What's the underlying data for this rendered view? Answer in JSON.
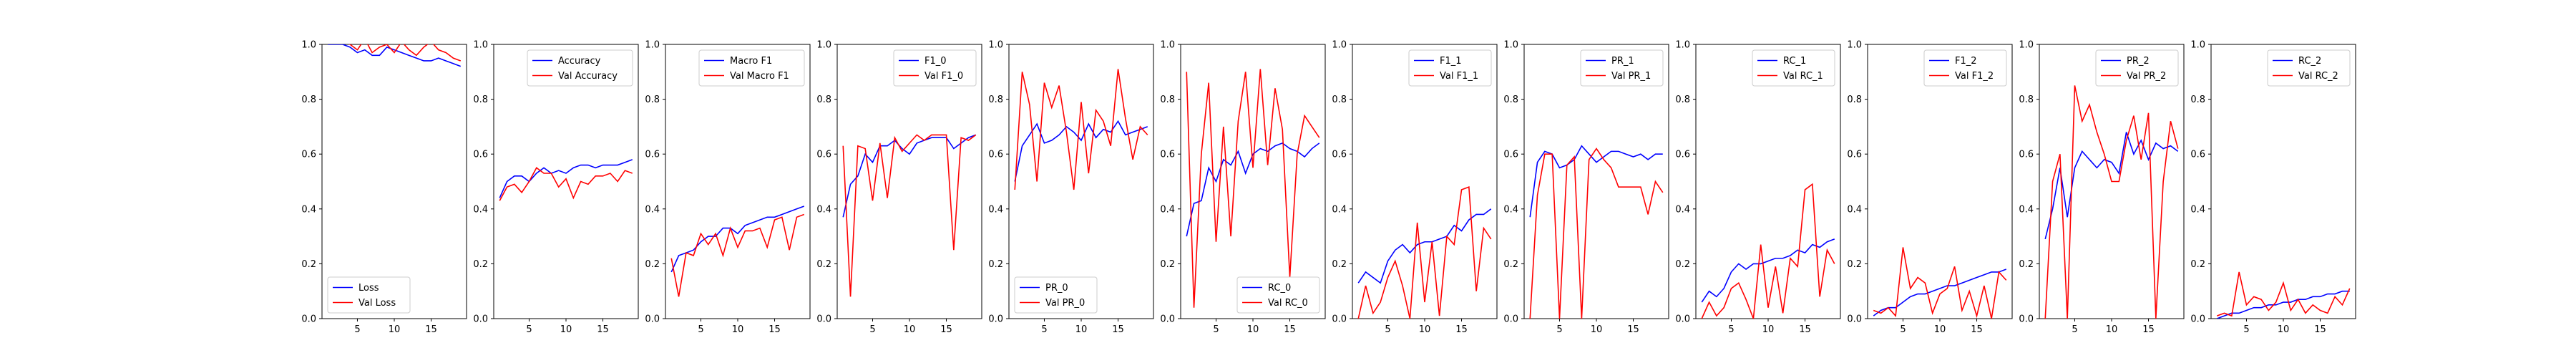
{
  "figure": {
    "background": "#ffffff",
    "line_colors": [
      "#0000ff",
      "#ff0000"
    ]
  },
  "chart_data": [
    {
      "type": "line",
      "x": [
        1,
        2,
        3,
        4,
        5,
        6,
        7,
        8,
        9,
        10,
        11,
        12,
        13,
        14,
        15,
        16,
        17,
        18,
        19
      ],
      "xticks": [
        5,
        10,
        15
      ],
      "ylim": [
        0,
        1
      ],
      "yticks": [
        "0.0",
        "0.2",
        "0.4",
        "0.6",
        "0.8",
        "1.0"
      ],
      "legend_loc": "lower-left",
      "series": [
        {
          "name": "Loss",
          "values": [
            1.0,
            1.0,
            1.0,
            0.99,
            0.97,
            0.98,
            0.96,
            0.96,
            0.99,
            0.98,
            0.97,
            0.96,
            0.95,
            0.94,
            0.94,
            0.95,
            0.94,
            0.93,
            0.92
          ]
        },
        {
          "name": "Val Loss",
          "values": [
            1.03,
            1.02,
            1.01,
            1.0,
            0.98,
            1.02,
            0.97,
            0.99,
            1.0,
            0.97,
            1.01,
            0.98,
            0.96,
            0.99,
            1.01,
            0.98,
            0.97,
            0.95,
            0.94
          ]
        }
      ]
    },
    {
      "type": "line",
      "x": [
        1,
        2,
        3,
        4,
        5,
        6,
        7,
        8,
        9,
        10,
        11,
        12,
        13,
        14,
        15,
        16,
        17,
        18,
        19
      ],
      "xticks": [
        5,
        10,
        15
      ],
      "ylim": [
        0,
        1
      ],
      "yticks": [
        "0.0",
        "0.2",
        "0.4",
        "0.6",
        "0.8",
        "1.0"
      ],
      "legend_loc": "upper-right",
      "series": [
        {
          "name": "Accuracy",
          "values": [
            0.44,
            0.5,
            0.52,
            0.52,
            0.5,
            0.53,
            0.55,
            0.53,
            0.54,
            0.53,
            0.55,
            0.56,
            0.56,
            0.55,
            0.56,
            0.56,
            0.56,
            0.57,
            0.58
          ]
        },
        {
          "name": "Val Accuracy",
          "values": [
            0.43,
            0.48,
            0.49,
            0.46,
            0.5,
            0.55,
            0.53,
            0.53,
            0.48,
            0.51,
            0.44,
            0.5,
            0.49,
            0.52,
            0.52,
            0.53,
            0.5,
            0.54,
            0.53
          ]
        }
      ]
    },
    {
      "type": "line",
      "x": [
        1,
        2,
        3,
        4,
        5,
        6,
        7,
        8,
        9,
        10,
        11,
        12,
        13,
        14,
        15,
        16,
        17,
        18,
        19
      ],
      "xticks": [
        5,
        10,
        15
      ],
      "ylim": [
        0,
        1
      ],
      "yticks": [
        "0.0",
        "0.2",
        "0.4",
        "0.6",
        "0.8",
        "1.0"
      ],
      "legend_loc": "upper-right",
      "series": [
        {
          "name": "Macro F1",
          "values": [
            0.17,
            0.23,
            0.24,
            0.25,
            0.28,
            0.3,
            0.3,
            0.33,
            0.33,
            0.31,
            0.34,
            0.35,
            0.36,
            0.37,
            0.37,
            0.38,
            0.39,
            0.4,
            0.41
          ]
        },
        {
          "name": "Val Macro F1",
          "values": [
            0.22,
            0.08,
            0.24,
            0.23,
            0.31,
            0.27,
            0.31,
            0.23,
            0.33,
            0.26,
            0.32,
            0.32,
            0.33,
            0.26,
            0.36,
            0.37,
            0.25,
            0.37,
            0.38
          ]
        }
      ]
    },
    {
      "type": "line",
      "x": [
        1,
        2,
        3,
        4,
        5,
        6,
        7,
        8,
        9,
        10,
        11,
        12,
        13,
        14,
        15,
        16,
        17,
        18,
        19
      ],
      "xticks": [
        5,
        10,
        15
      ],
      "ylim": [
        0,
        1
      ],
      "yticks": [
        "0.0",
        "0.2",
        "0.4",
        "0.6",
        "0.8",
        "1.0"
      ],
      "legend_loc": "upper-right",
      "series": [
        {
          "name": "F1_0",
          "values": [
            0.37,
            0.49,
            0.52,
            0.6,
            0.57,
            0.63,
            0.63,
            0.65,
            0.62,
            0.6,
            0.64,
            0.65,
            0.66,
            0.66,
            0.66,
            0.62,
            0.64,
            0.66,
            0.67
          ]
        },
        {
          "name": "Val F1_0",
          "values": [
            0.63,
            0.08,
            0.63,
            0.62,
            0.43,
            0.64,
            0.44,
            0.66,
            0.61,
            0.64,
            0.67,
            0.65,
            0.67,
            0.67,
            0.67,
            0.25,
            0.66,
            0.65,
            0.67
          ]
        }
      ]
    },
    {
      "type": "line",
      "x": [
        1,
        2,
        3,
        4,
        5,
        6,
        7,
        8,
        9,
        10,
        11,
        12,
        13,
        14,
        15,
        16,
        17,
        18,
        19
      ],
      "xticks": [
        5,
        10,
        15
      ],
      "ylim": [
        0,
        1
      ],
      "yticks": [
        "0.0",
        "0.2",
        "0.4",
        "0.6",
        "0.8",
        "1.0"
      ],
      "legend_loc": "lower-left",
      "series": [
        {
          "name": "PR_0",
          "values": [
            0.5,
            0.63,
            0.67,
            0.71,
            0.64,
            0.65,
            0.67,
            0.7,
            0.68,
            0.65,
            0.71,
            0.66,
            0.69,
            0.68,
            0.72,
            0.67,
            0.68,
            0.69,
            0.7
          ]
        },
        {
          "name": "Val PR_0",
          "values": [
            0.47,
            0.9,
            0.78,
            0.5,
            0.86,
            0.77,
            0.85,
            0.68,
            0.47,
            0.79,
            0.53,
            0.76,
            0.72,
            0.63,
            0.91,
            0.73,
            0.58,
            0.7,
            0.67
          ]
        }
      ]
    },
    {
      "type": "line",
      "x": [
        1,
        2,
        3,
        4,
        5,
        6,
        7,
        8,
        9,
        10,
        11,
        12,
        13,
        14,
        15,
        16,
        17,
        18,
        19
      ],
      "xticks": [
        5,
        10,
        15
      ],
      "ylim": [
        0,
        1
      ],
      "yticks": [
        "0.0",
        "0.2",
        "0.4",
        "0.6",
        "0.8",
        "1.0"
      ],
      "legend_loc": "lower-right",
      "series": [
        {
          "name": "RC_0",
          "values": [
            0.3,
            0.42,
            0.43,
            0.55,
            0.5,
            0.58,
            0.56,
            0.61,
            0.53,
            0.6,
            0.62,
            0.61,
            0.63,
            0.64,
            0.62,
            0.61,
            0.59,
            0.62,
            0.64
          ]
        },
        {
          "name": "Val RC_0",
          "values": [
            0.9,
            0.04,
            0.6,
            0.86,
            0.28,
            0.7,
            0.3,
            0.72,
            0.9,
            0.55,
            0.91,
            0.56,
            0.84,
            0.69,
            0.15,
            0.6,
            0.74,
            0.7,
            0.66
          ]
        }
      ]
    },
    {
      "type": "line",
      "x": [
        1,
        2,
        3,
        4,
        5,
        6,
        7,
        8,
        9,
        10,
        11,
        12,
        13,
        14,
        15,
        16,
        17,
        18,
        19
      ],
      "xticks": [
        5,
        10,
        15
      ],
      "ylim": [
        0,
        1
      ],
      "yticks": [
        "0.0",
        "0.2",
        "0.4",
        "0.6",
        "0.8",
        "1.0"
      ],
      "legend_loc": "upper-right",
      "series": [
        {
          "name": "F1_1",
          "values": [
            0.13,
            0.17,
            0.15,
            0.13,
            0.21,
            0.25,
            0.27,
            0.24,
            0.27,
            0.28,
            0.28,
            0.29,
            0.3,
            0.34,
            0.32,
            0.36,
            0.38,
            0.38,
            0.4
          ]
        },
        {
          "name": "Val F1_1",
          "values": [
            0.0,
            0.12,
            0.02,
            0.06,
            0.15,
            0.21,
            0.12,
            0.0,
            0.35,
            0.06,
            0.28,
            0.01,
            0.3,
            0.27,
            0.47,
            0.48,
            0.1,
            0.33,
            0.29
          ]
        }
      ]
    },
    {
      "type": "line",
      "x": [
        1,
        2,
        3,
        4,
        5,
        6,
        7,
        8,
        9,
        10,
        11,
        12,
        13,
        14,
        15,
        16,
        17,
        18,
        19
      ],
      "xticks": [
        5,
        10,
        15
      ],
      "ylim": [
        0,
        1
      ],
      "yticks": [
        "0.0",
        "0.2",
        "0.4",
        "0.6",
        "0.8",
        "1.0"
      ],
      "legend_loc": "upper-right",
      "series": [
        {
          "name": "PR_1",
          "values": [
            0.37,
            0.57,
            0.61,
            0.6,
            0.55,
            0.56,
            0.58,
            0.63,
            0.6,
            0.57,
            0.59,
            0.61,
            0.61,
            0.6,
            0.59,
            0.6,
            0.58,
            0.6,
            0.6
          ]
        },
        {
          "name": "Val PR_1",
          "values": [
            0.0,
            0.45,
            0.6,
            0.6,
            0.0,
            0.56,
            0.59,
            0.0,
            0.58,
            0.62,
            0.58,
            0.55,
            0.48,
            0.48,
            0.48,
            0.48,
            0.38,
            0.5,
            0.46
          ]
        }
      ]
    },
    {
      "type": "line",
      "x": [
        1,
        2,
        3,
        4,
        5,
        6,
        7,
        8,
        9,
        10,
        11,
        12,
        13,
        14,
        15,
        16,
        17,
        18,
        19
      ],
      "xticks": [
        5,
        10,
        15
      ],
      "ylim": [
        0,
        1
      ],
      "yticks": [
        "0.0",
        "0.2",
        "0.4",
        "0.6",
        "0.8",
        "1.0"
      ],
      "legend_loc": "upper-right",
      "series": [
        {
          "name": "RC_1",
          "values": [
            0.06,
            0.1,
            0.08,
            0.11,
            0.17,
            0.2,
            0.18,
            0.2,
            0.2,
            0.21,
            0.22,
            0.22,
            0.23,
            0.25,
            0.24,
            0.27,
            0.26,
            0.28,
            0.29
          ]
        },
        {
          "name": "Val RC_1",
          "values": [
            0.0,
            0.06,
            0.01,
            0.04,
            0.11,
            0.13,
            0.07,
            0.0,
            0.27,
            0.04,
            0.19,
            0.02,
            0.22,
            0.19,
            0.47,
            0.49,
            0.08,
            0.25,
            0.2
          ]
        }
      ]
    },
    {
      "type": "line",
      "x": [
        1,
        2,
        3,
        4,
        5,
        6,
        7,
        8,
        9,
        10,
        11,
        12,
        13,
        14,
        15,
        16,
        17,
        18,
        19
      ],
      "xticks": [
        5,
        10,
        15
      ],
      "ylim": [
        0,
        1
      ],
      "yticks": [
        "0.0",
        "0.2",
        "0.4",
        "0.6",
        "0.8",
        "1.0"
      ],
      "legend_loc": "upper-right",
      "series": [
        {
          "name": "F1_2",
          "values": [
            0.01,
            0.03,
            0.04,
            0.04,
            0.06,
            0.08,
            0.09,
            0.09,
            0.1,
            0.11,
            0.12,
            0.12,
            0.13,
            0.14,
            0.15,
            0.16,
            0.17,
            0.17,
            0.18
          ]
        },
        {
          "name": "Val F1_2",
          "values": [
            0.03,
            0.02,
            0.04,
            0.01,
            0.26,
            0.11,
            0.15,
            0.13,
            0.02,
            0.09,
            0.11,
            0.19,
            0.03,
            0.1,
            0.01,
            0.12,
            0.0,
            0.17,
            0.14
          ]
        }
      ]
    },
    {
      "type": "line",
      "x": [
        1,
        2,
        3,
        4,
        5,
        6,
        7,
        8,
        9,
        10,
        11,
        12,
        13,
        14,
        15,
        16,
        17,
        18,
        19
      ],
      "xticks": [
        5,
        10,
        15
      ],
      "ylim": [
        0,
        1
      ],
      "yticks": [
        "0.0",
        "0.2",
        "0.4",
        "0.6",
        "0.8",
        "1.0"
      ],
      "legend_loc": "upper-right",
      "series": [
        {
          "name": "PR_2",
          "values": [
            0.29,
            0.4,
            0.55,
            0.37,
            0.55,
            0.61,
            0.58,
            0.55,
            0.58,
            0.57,
            0.53,
            0.68,
            0.6,
            0.65,
            0.58,
            0.64,
            0.62,
            0.63,
            0.61
          ]
        },
        {
          "name": "Val PR_2",
          "values": [
            0.0,
            0.5,
            0.6,
            0.0,
            0.85,
            0.72,
            0.78,
            0.68,
            0.6,
            0.5,
            0.5,
            0.65,
            0.74,
            0.58,
            0.75,
            0.0,
            0.5,
            0.72,
            0.62
          ]
        }
      ]
    },
    {
      "type": "line",
      "x": [
        1,
        2,
        3,
        4,
        5,
        6,
        7,
        8,
        9,
        10,
        11,
        12,
        13,
        14,
        15,
        16,
        17,
        18,
        19
      ],
      "xticks": [
        5,
        10,
        15
      ],
      "ylim": [
        0,
        1
      ],
      "yticks": [
        "0.0",
        "0.2",
        "0.4",
        "0.6",
        "0.8",
        "1.0"
      ],
      "legend_loc": "upper-right",
      "series": [
        {
          "name": "RC_2",
          "values": [
            0.0,
            0.01,
            0.02,
            0.02,
            0.03,
            0.04,
            0.04,
            0.05,
            0.05,
            0.06,
            0.06,
            0.07,
            0.07,
            0.08,
            0.08,
            0.09,
            0.09,
            0.1,
            0.1
          ]
        },
        {
          "name": "Val RC_2",
          "values": [
            0.01,
            0.02,
            0.01,
            0.17,
            0.05,
            0.08,
            0.07,
            0.03,
            0.06,
            0.13,
            0.03,
            0.07,
            0.02,
            0.05,
            0.03,
            0.02,
            0.08,
            0.05,
            0.11
          ]
        }
      ]
    }
  ]
}
